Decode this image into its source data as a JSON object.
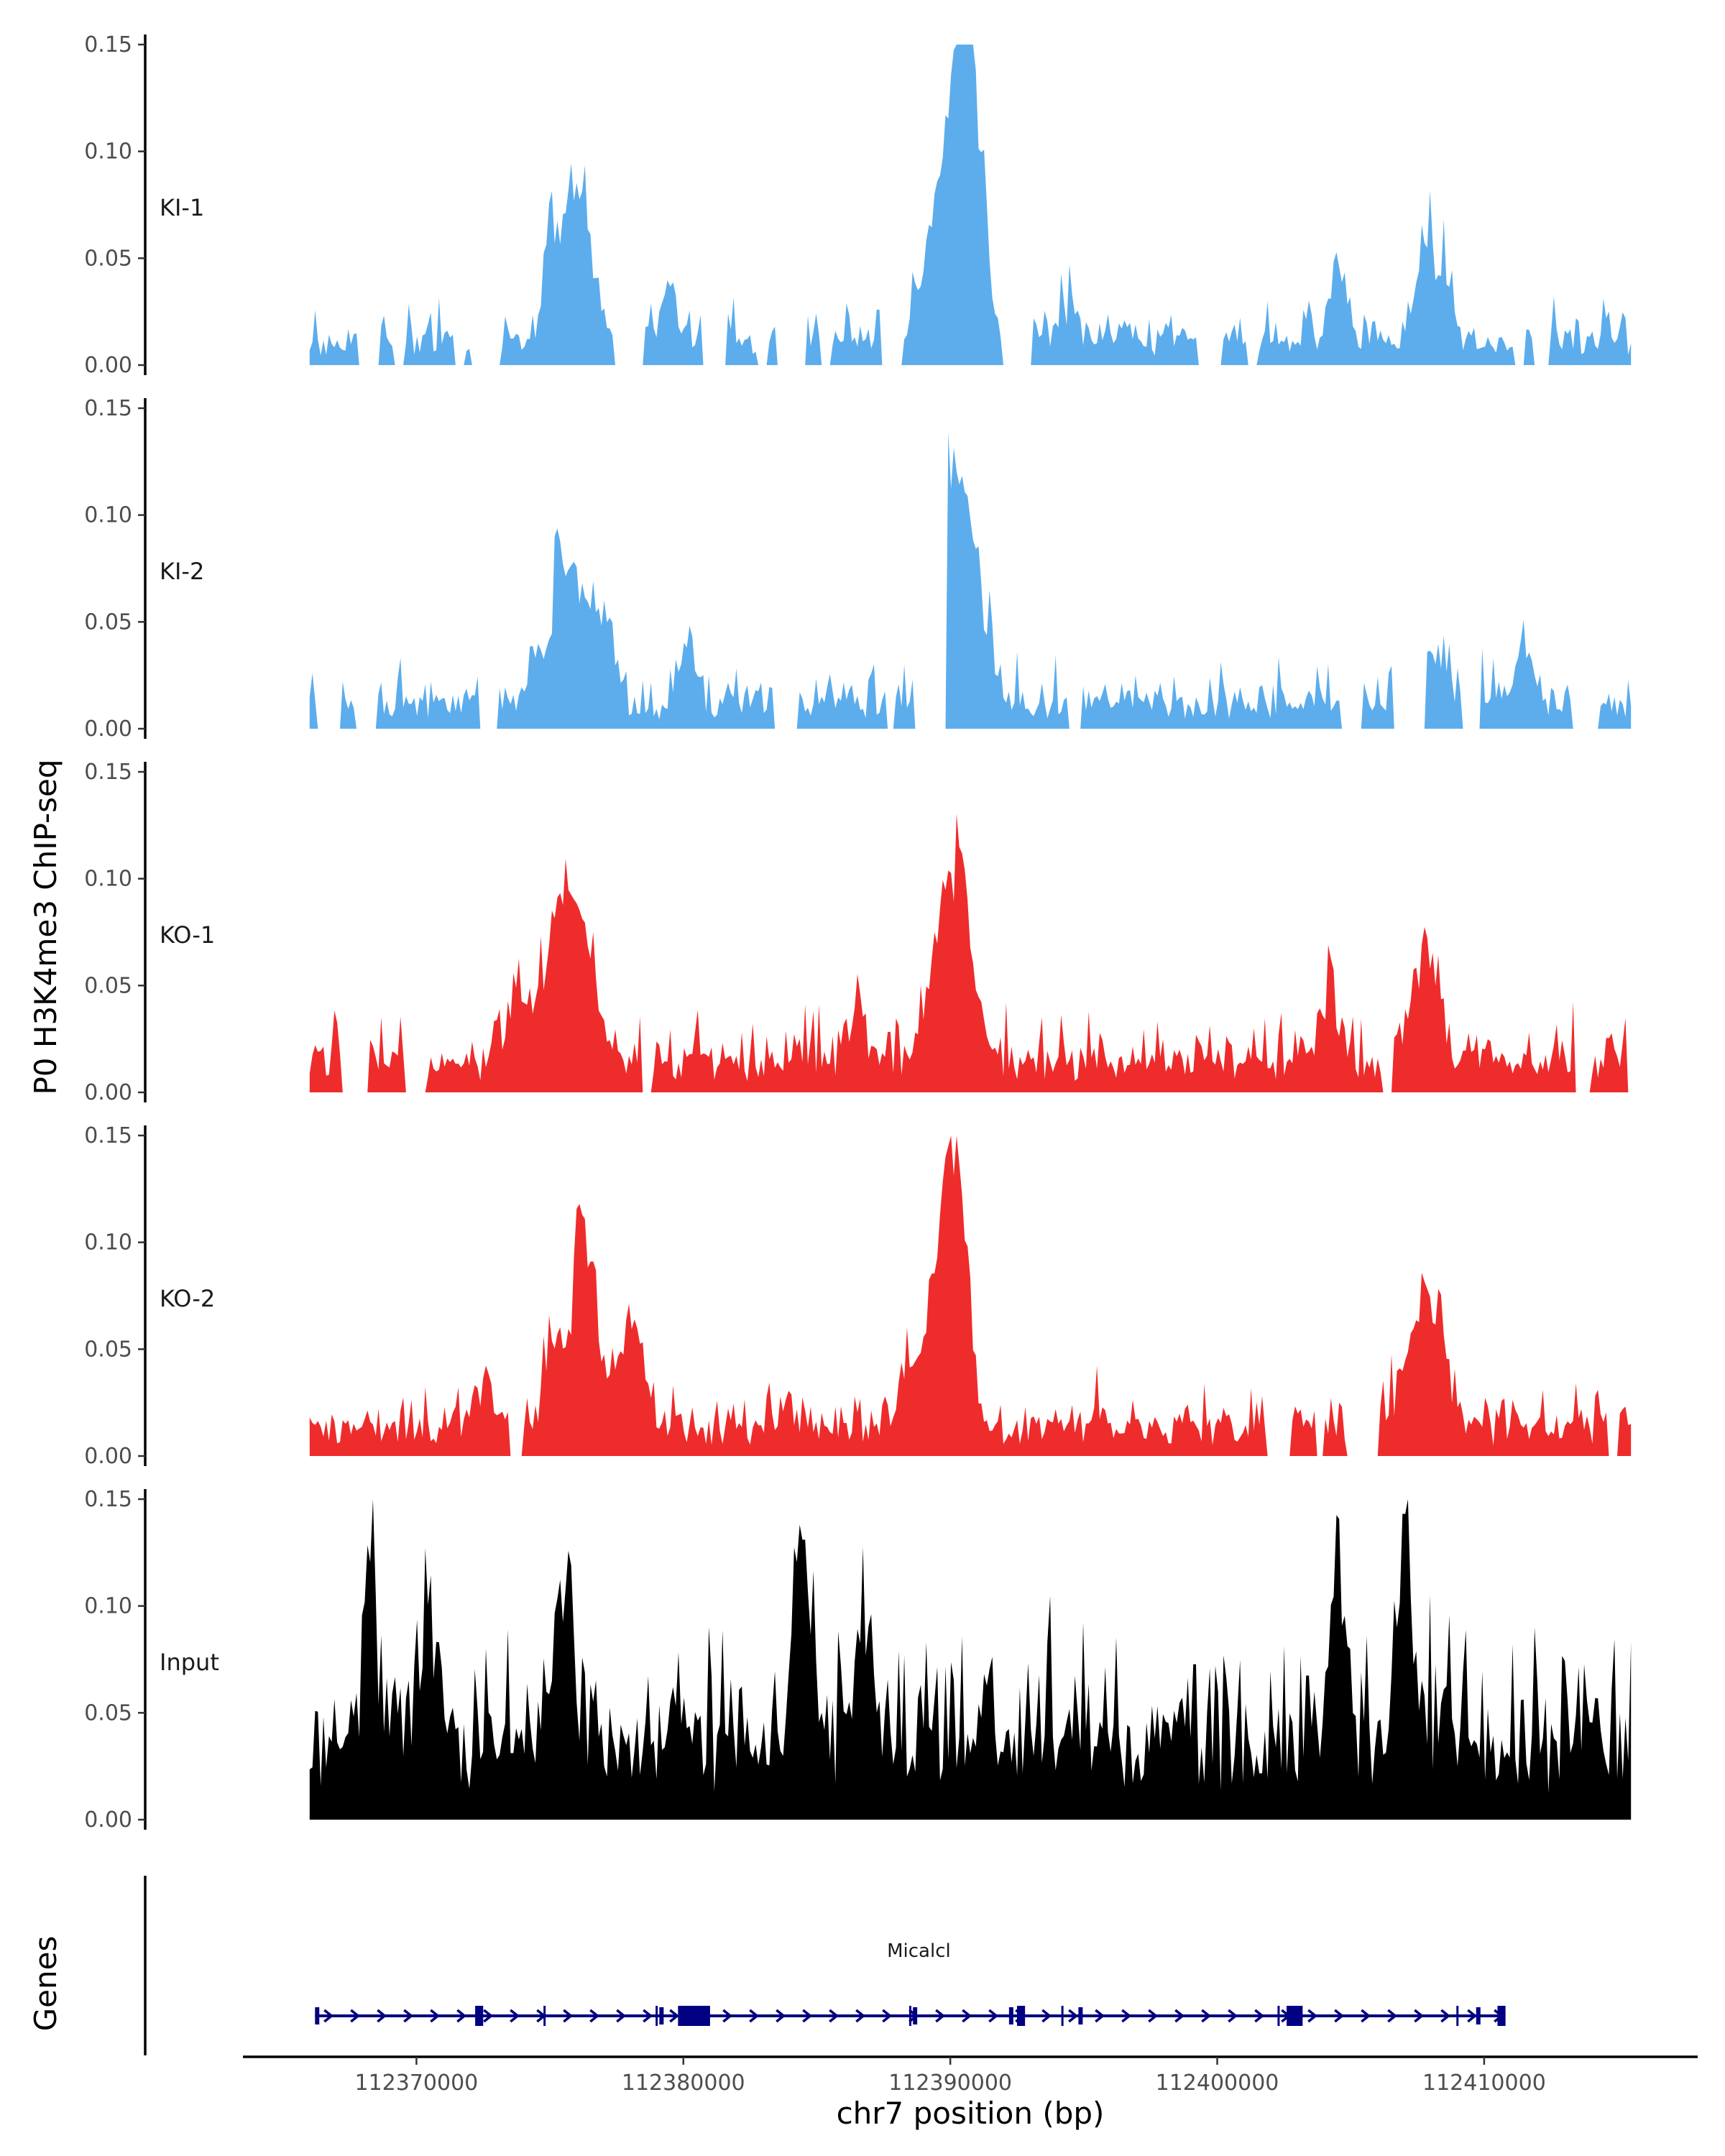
{
  "chart_data": {
    "type": "area",
    "ylabel": "P0 H3K4me3 ChIP-seq",
    "xlabel": "chr7 position (bp)",
    "xlim": [
      112363500,
      112418000
    ],
    "data_range": [
      112366000,
      112415500
    ],
    "ylim": [
      0,
      0.15
    ],
    "y_ticks": [
      0.0,
      0.05,
      0.1,
      0.15
    ],
    "y_tick_labels": [
      "0.00",
      "0.05",
      "0.10",
      "0.15"
    ],
    "x_ticks": [
      112370000,
      112380000,
      112390000,
      112400000,
      112410000
    ],
    "x_tick_labels": [
      "112370000",
      "112380000",
      "112390000",
      "112400000",
      "112410000"
    ],
    "series": [
      {
        "name": "KI-1",
        "color": "#5DADEC",
        "peaks": [
          [
            112376000,
            0.078,
            500
          ],
          [
            112375000,
            0.045,
            250
          ],
          [
            112390300,
            0.147,
            500
          ],
          [
            112390800,
            0.09,
            400
          ],
          [
            112389200,
            0.04,
            400
          ],
          [
            112404500,
            0.045,
            300
          ],
          [
            112408000,
            0.045,
            500
          ],
          [
            112394500,
            0.02,
            300
          ],
          [
            112379500,
            0.03,
            300
          ]
        ],
        "baseline": 0.01,
        "noise": 0.012,
        "gap_fraction": 0.45,
        "seed": 11
      },
      {
        "name": "KI-2",
        "color": "#5DADEC",
        "peaks": [
          [
            112376000,
            0.065,
            400
          ],
          [
            112375300,
            0.06,
            250
          ],
          [
            112377000,
            0.035,
            400
          ],
          [
            112390000,
            0.101,
            600
          ],
          [
            112390800,
            0.05,
            500
          ],
          [
            112380200,
            0.03,
            300
          ],
          [
            112374500,
            0.028,
            300
          ],
          [
            112408000,
            0.03,
            600
          ],
          [
            112411500,
            0.03,
            300
          ]
        ],
        "baseline": 0.01,
        "noise": 0.012,
        "gap_fraction": 0.3,
        "seed": 22
      },
      {
        "name": "KO-1",
        "color": "#EE2C2C",
        "peaks": [
          [
            112376000,
            0.083,
            600
          ],
          [
            112375200,
            0.05,
            400
          ],
          [
            112390300,
            0.095,
            500
          ],
          [
            112389400,
            0.045,
            400
          ],
          [
            112407800,
            0.055,
            500
          ],
          [
            112373800,
            0.035,
            400
          ],
          [
            112386500,
            0.03,
            300
          ],
          [
            112404200,
            0.035,
            300
          ]
        ],
        "baseline": 0.012,
        "noise": 0.015,
        "gap_fraction": 0.2,
        "seed": 33
      },
      {
        "name": "KO-2",
        "color": "#EE2C2C",
        "peaks": [
          [
            112376300,
            0.103,
            400
          ],
          [
            112378000,
            0.055,
            500
          ],
          [
            112375200,
            0.04,
            400
          ],
          [
            112390300,
            0.118,
            400
          ],
          [
            112389700,
            0.09,
            400
          ],
          [
            112388500,
            0.035,
            400
          ],
          [
            112407500,
            0.055,
            500
          ],
          [
            112408300,
            0.04,
            400
          ],
          [
            112372600,
            0.025,
            300
          ]
        ],
        "baseline": 0.012,
        "noise": 0.012,
        "gap_fraction": 0.1,
        "seed": 44
      },
      {
        "name": "Input",
        "color": "#000000",
        "peaks": [
          [
            112384500,
            0.111,
            300
          ],
          [
            112404500,
            0.111,
            300
          ],
          [
            112407000,
            0.1,
            300
          ],
          [
            112368300,
            0.082,
            300
          ],
          [
            112375500,
            0.075,
            300
          ],
          [
            112386800,
            0.07,
            300
          ],
          [
            112370500,
            0.06,
            400
          ]
        ],
        "baseline": 0.03,
        "noise": 0.035,
        "gap_fraction": 0.0,
        "seed": 55
      }
    ],
    "genes": {
      "title": "Genes",
      "name": "Micalcl",
      "color": "#000080",
      "start": 112366200,
      "end": 112410800,
      "strand": "+",
      "exons": [
        [
          112366200,
          112366300
        ],
        [
          112372200,
          112372500
        ],
        [
          112379100,
          112379200
        ],
        [
          112379800,
          112381000
        ],
        [
          112388600,
          112388700
        ],
        [
          112392200,
          112392300
        ],
        [
          112392500,
          112392800
        ],
        [
          112394800,
          112394900
        ],
        [
          112402600,
          112403200
        ],
        [
          112409700,
          112409800
        ],
        [
          112410500,
          112410800
        ]
      ]
    }
  }
}
